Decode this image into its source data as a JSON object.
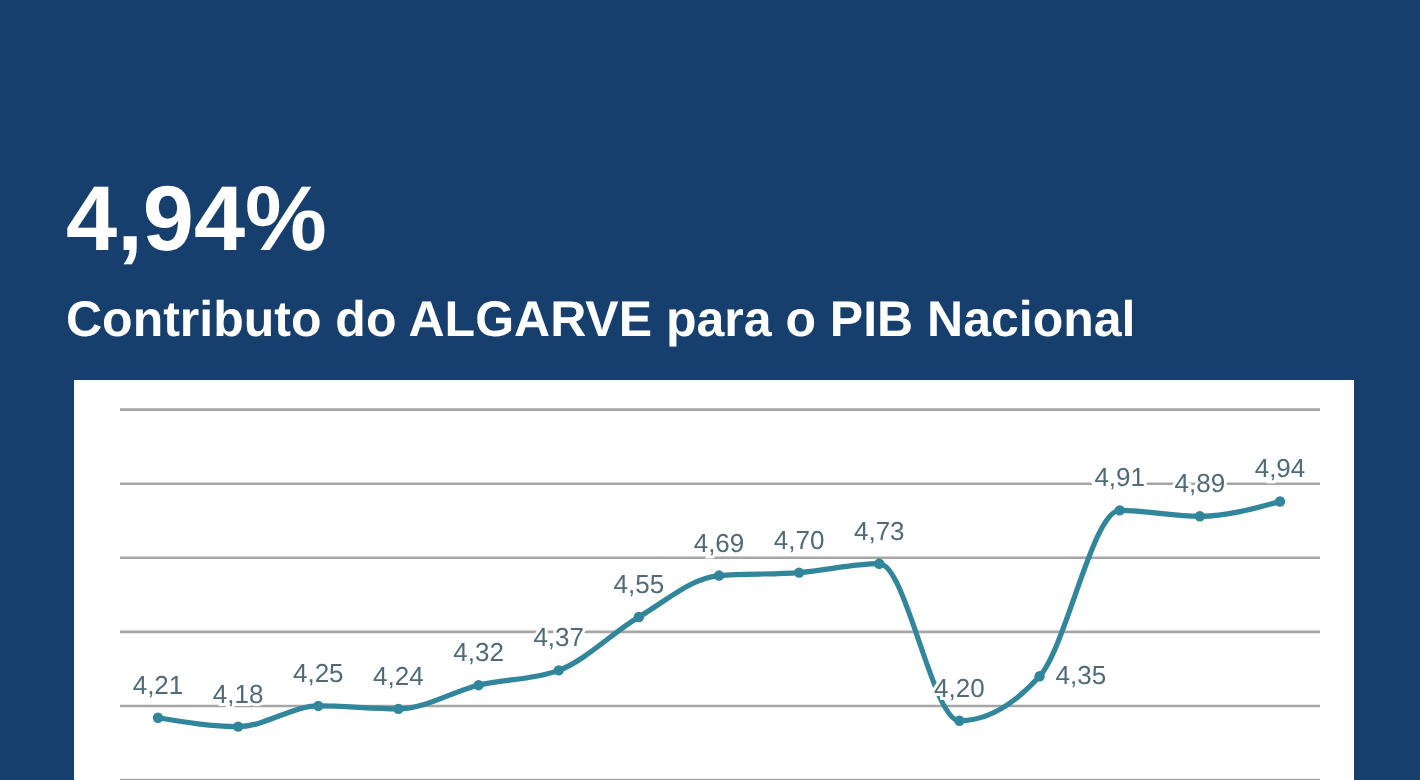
{
  "chart_data": {
    "type": "line",
    "title": "4,94%",
    "subtitle": "Contributo do ALGARVE para o PIB Nacional",
    "categories": [
      null,
      null,
      null,
      null,
      null,
      null,
      null,
      null,
      null,
      null,
      null,
      null,
      null,
      null,
      null
    ],
    "series": [
      {
        "color": "#31869b",
        "values": [
          4.21,
          4.18,
          4.25,
          4.24,
          4.32,
          4.37,
          4.55,
          4.69,
          4.7,
          4.73,
          4.2,
          4.35,
          4.91,
          4.89,
          4.94
        ],
        "value_labels": [
          "4,21",
          "4,18",
          "4,25",
          "4,24",
          "4,32",
          "4,37",
          "4,55",
          "4,69",
          "4,70",
          "4,73",
          "4,20",
          "4,35",
          "4,91",
          "4,89",
          "4,94"
        ]
      }
    ],
    "ylim": [
      4.0,
      5.35
    ],
    "yticks": [
      {
        "value": 4.0,
        "label": null
      },
      {
        "value": 4.25,
        "label": null
      },
      {
        "value": 4.5,
        "label": null
      },
      {
        "value": 4.75,
        "label": null
      },
      {
        "value": 5.0,
        "label": null
      },
      {
        "value": 5.25,
        "label": null
      }
    ],
    "grid": "y",
    "marker": "circle",
    "line_style": "solid"
  }
}
